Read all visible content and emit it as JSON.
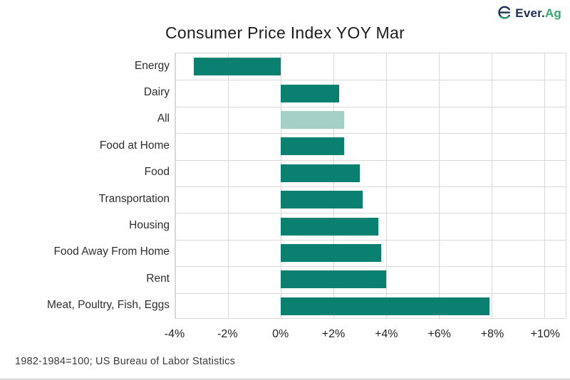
{
  "header": {
    "logo": {
      "brand_prefix": "Ever.",
      "brand_suffix": "Ag",
      "icon_name": "ever-ag-e-icon",
      "navy_color": "#1e2f54",
      "green_color": "#2fab6b"
    }
  },
  "chart_data": {
    "type": "bar",
    "orientation": "horizontal",
    "title": "Consumer Price Index YOY Mar",
    "categories": [
      "Energy",
      "Dairy",
      "All",
      "Food at Home",
      "Food",
      "Transportation",
      "Housing",
      "Food Away From Home",
      "Rent",
      "Meat, Poultry, Fish, Eggs"
    ],
    "values": [
      -3.3,
      2.2,
      2.4,
      2.4,
      3.0,
      3.1,
      3.7,
      3.8,
      4.0,
      7.9
    ],
    "unit": "%",
    "highlight_index": 2,
    "highlighted_category": "All",
    "bar_color": "#0a8170",
    "highlight_bar_color": "#a5d0c5",
    "grid": true,
    "grid_color": "#d9d9d9",
    "xlim": [
      -4,
      10.8
    ],
    "x_ticks": [
      {
        "value": -4,
        "label": "-4%"
      },
      {
        "value": -2,
        "label": "-2%"
      },
      {
        "value": 0,
        "label": "0%"
      },
      {
        "value": 2,
        "label": "+2%"
      },
      {
        "value": 4,
        "label": "+4%"
      },
      {
        "value": 6,
        "label": "+6%"
      },
      {
        "value": 8,
        "label": "+8%"
      },
      {
        "value": 10,
        "label": "+10%"
      }
    ],
    "legend": false
  },
  "footer": {
    "source_note": "1982-1984=100; US Bureau of Labor Statistics"
  }
}
